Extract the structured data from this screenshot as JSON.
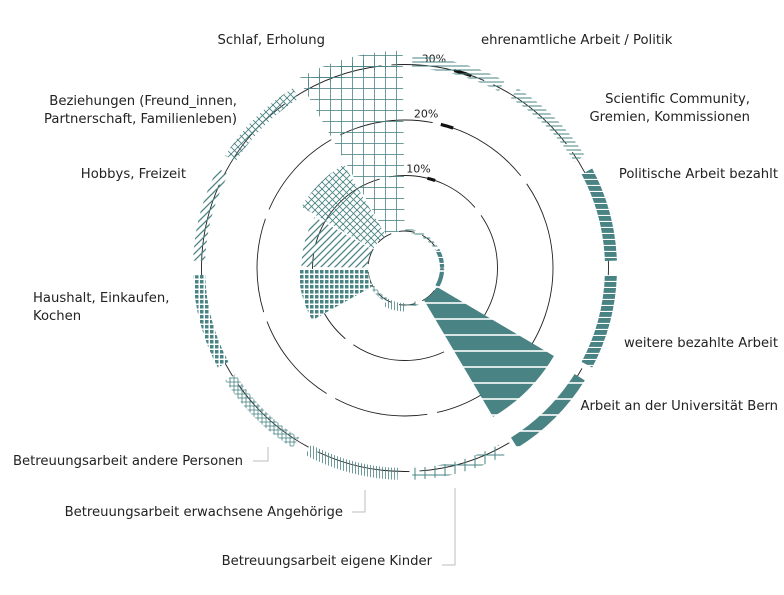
{
  "colors": {
    "accent": "#4a8384",
    "grid": "#222222",
    "leader": "#bdbdbd",
    "text": "#222222"
  },
  "chart_data": {
    "type": "polar-area",
    "title": "",
    "radial_ticks": [
      "10%",
      "20%",
      "30%"
    ],
    "radial_tick_values": [
      10,
      20,
      30
    ],
    "radial_range": [
      0,
      40
    ],
    "grid": "dashed circles",
    "categories": [
      "ehrenamtliche Arbeit / Politik",
      "Scientific Community, Gremien, Kommissionen",
      "Politische Arbeit bezahlt",
      "weitere bezahlte Arbeit",
      "Arbeit an der Universität Bern",
      "Betreuungsarbeit eigene Kinder",
      "Betreuungsarbeit erwachsene Angehörige",
      "Betreuungsarbeit andere Personen",
      "Haushalt, Einkaufen, Kochen",
      "Hobbys, Freizeit",
      "Beziehungen (Freund_innen, Partnerschaft, Familienleben)",
      "Schlaf, Erholung"
    ],
    "values": [
      0.4,
      0.4,
      0.4,
      0.4,
      24.5,
      0.4,
      1.2,
      0.4,
      12.5,
      12.0,
      15.0,
      32.5
    ],
    "label_lines": [
      [
        "ehrenamtliche Arbeit / Politik"
      ],
      [
        "Scientific Community,",
        "Gremien, Kommissionen"
      ],
      [
        "Politische Arbeit bezahlt"
      ],
      [
        "weitere bezahlte Arbeit"
      ],
      [
        "Arbeit an der Universität Bern"
      ],
      [
        "Betreuungsarbeit eigene Kinder"
      ],
      [
        "Betreuungsarbeit erwachsene Angehörige"
      ],
      [
        "Betreuungsarbeit andere Personen"
      ],
      [
        "Haushalt, Einkaufen,",
        "Kochen"
      ],
      [
        "Hobbys, Freizeit"
      ],
      [
        "Beziehungen (Freund_innen,",
        "Partnerschaft, Familienleben)"
      ],
      [
        "Schlaf, Erholung"
      ]
    ]
  }
}
